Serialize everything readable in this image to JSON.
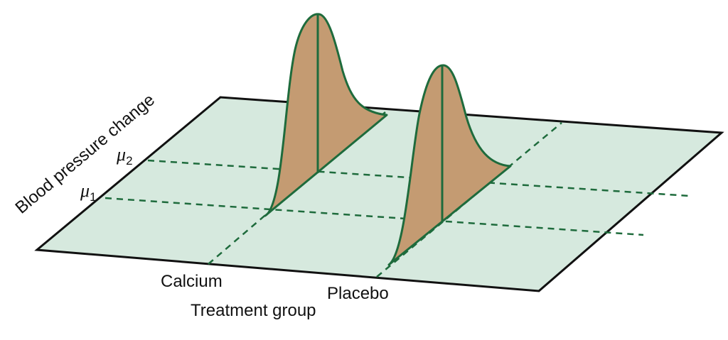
{
  "labels": {
    "y_axis": "Blood pressure change",
    "x_axis": "Treatment group",
    "group_1": "Calcium",
    "group_2": "Placebo",
    "mu_1_symbol": "μ",
    "mu_1_sub": "1",
    "mu_2_symbol": "μ",
    "mu_2_sub": "2"
  },
  "colors": {
    "plane_fill": "#d6e9de",
    "plane_stroke": "#111111",
    "dash_line": "#1e6b3c",
    "curve_fill": "#c49b72",
    "curve_stroke": "#1e6b3c"
  }
}
